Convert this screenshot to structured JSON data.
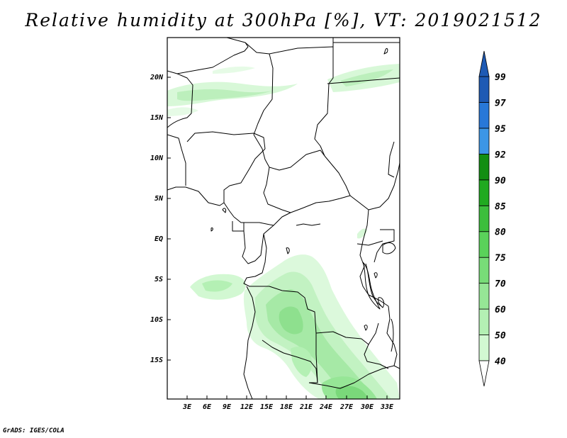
{
  "title": "Relative humidity at 300hPa [%], VT: 2019021512",
  "footer": "GrADS: IGES/COLA",
  "map": {
    "lat_labels": [
      "20N",
      "15N",
      "10N",
      "5N",
      "EQ",
      "5S",
      "10S",
      "15S"
    ],
    "lon_labels": [
      "3E",
      "6E",
      "9E",
      "12E",
      "15E",
      "18E",
      "21E",
      "24E",
      "27E",
      "30E",
      "33E"
    ]
  },
  "colorbar": {
    "levels": [
      "40",
      "50",
      "60",
      "70",
      "75",
      "80",
      "85",
      "90",
      "92",
      "95",
      "97",
      "99"
    ],
    "colors": [
      "#f0fff0",
      "#d2f8d2",
      "#b4f0b4",
      "#96e696",
      "#78dc78",
      "#5ad25a",
      "#3cbe3c",
      "#20aa20",
      "#128e12",
      "#3c96e6",
      "#2878d8",
      "#1e5ab4"
    ]
  }
}
